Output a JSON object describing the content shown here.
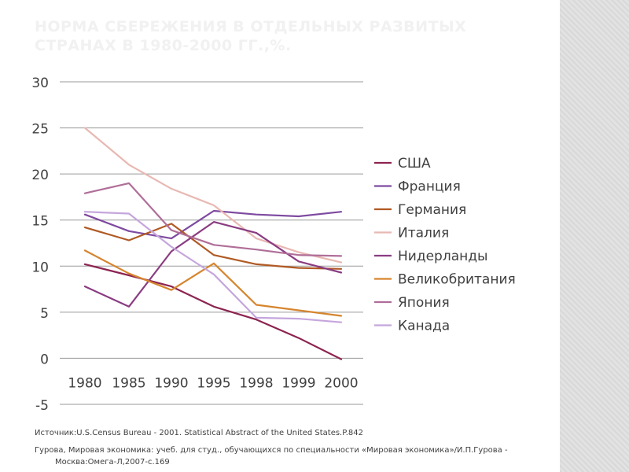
{
  "slide": {
    "title": "НОРМА СБЕРЕЖЕНИЯ В ОТДЕЛЬНЫХ РАЗВИТЫХ СТРАНАХ В 1980-2000 ГГ.,%.",
    "source_1": "Источник:U.S.Census Bureau - 2001. Statistical Abstract of the United States.P.842",
    "source_2": "Гурова, Мировая экономика: учеб. для студ., обучающихся по специальности «Мировая экономика»/И.П.Гурова - Москва:Омега-Л,2007-с.169"
  },
  "chart_data": {
    "type": "line",
    "title": "",
    "xlabel": "",
    "ylabel": "",
    "categories": [
      "1980",
      "1985",
      "1990",
      "1995",
      "1998",
      "1999",
      "2000"
    ],
    "ylim": [
      -5,
      30
    ],
    "yticks": [
      -5,
      0,
      5,
      10,
      15,
      20,
      25,
      30
    ],
    "grid": true,
    "legend": "right",
    "series": [
      {
        "name": "США",
        "color": "#8c2450",
        "values": [
          10.2,
          9.0,
          7.8,
          5.6,
          4.2,
          2.2,
          -0.1
        ]
      },
      {
        "name": "Франция",
        "color": "#7e4aa0",
        "values": [
          15.6,
          13.8,
          13.0,
          16.0,
          15.6,
          15.4,
          15.9
        ]
      },
      {
        "name": "Германия",
        "color": "#b05a24",
        "values": [
          14.2,
          12.8,
          14.6,
          11.2,
          10.2,
          9.8,
          9.7
        ]
      },
      {
        "name": "Италия",
        "color": "#e8b8b2",
        "values": [
          25.0,
          21.0,
          18.4,
          16.6,
          13.0,
          11.5,
          10.4
        ]
      },
      {
        "name": "Нидерланды",
        "color": "#8a3c82",
        "values": [
          7.8,
          5.6,
          11.6,
          14.8,
          13.6,
          10.5,
          9.3
        ]
      },
      {
        "name": "Великобритания",
        "color": "#d6852e",
        "values": [
          11.7,
          9.2,
          7.4,
          10.3,
          5.8,
          5.2,
          4.6
        ]
      },
      {
        "name": "Япония",
        "color": "#b06e98",
        "values": [
          17.9,
          19.0,
          13.9,
          12.3,
          11.8,
          11.2,
          11.1
        ]
      },
      {
        "name": "Канада",
        "color": "#c5a6dc",
        "values": [
          15.9,
          15.7,
          12.1,
          9.1,
          4.4,
          4.3,
          3.9
        ]
      }
    ]
  }
}
